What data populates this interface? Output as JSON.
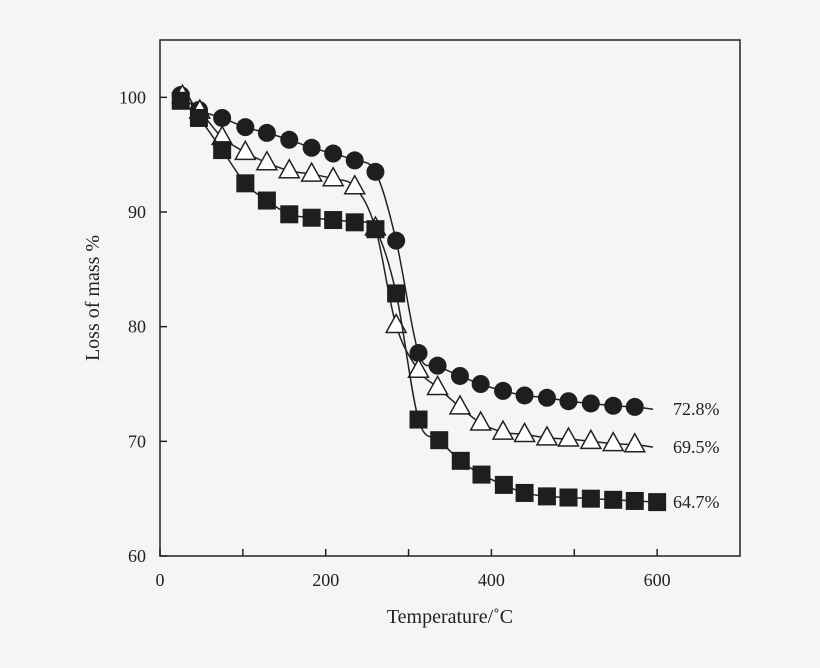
{
  "chart_data": {
    "type": "line",
    "title": "",
    "xlabel": "Temperature/˚C",
    "ylabel": "Loss of mass %",
    "xlim": [
      0,
      700
    ],
    "ylim": [
      60,
      105
    ],
    "xticks": [
      0,
      200,
      400,
      600
    ],
    "yticks": [
      60,
      70,
      80,
      90,
      100
    ],
    "grid": false,
    "series": [
      {
        "marker": "filled-circle",
        "end_label": "72.8%",
        "end_value": 72.8,
        "x": [
          25,
          47,
          75,
          103,
          129,
          156,
          183,
          209,
          235,
          260,
          285,
          312,
          335,
          362,
          387,
          414,
          440,
          467,
          493,
          520,
          547,
          573
        ],
        "y": [
          100.2,
          98.9,
          98.2,
          97.4,
          96.9,
          96.3,
          95.6,
          95.1,
          94.5,
          93.5,
          87.5,
          77.7,
          76.6,
          75.7,
          75.0,
          74.4,
          74.0,
          73.8,
          73.5,
          73.3,
          73.1,
          73.0
        ]
      },
      {
        "marker": "open-triangle",
        "end_label": "69.5%",
        "end_value": 69.5,
        "x": [
          27,
          48,
          75,
          103,
          129,
          156,
          183,
          209,
          235,
          260,
          285,
          312,
          335,
          362,
          387,
          414,
          440,
          467,
          493,
          520,
          547,
          573
        ],
        "y": [
          100.1,
          98.8,
          96.5,
          95.2,
          94.3,
          93.6,
          93.3,
          92.9,
          92.2,
          88.6,
          80.1,
          76.2,
          74.7,
          73.0,
          71.6,
          70.8,
          70.6,
          70.3,
          70.2,
          70.0,
          69.8,
          69.7
        ]
      },
      {
        "marker": "filled-square",
        "end_label": "64.7%",
        "end_value": 64.7,
        "x": [
          25,
          47,
          75,
          103,
          129,
          156,
          183,
          209,
          235,
          260,
          285,
          312,
          337,
          363,
          388,
          415,
          440,
          467,
          493,
          520,
          547,
          573,
          600
        ],
        "y": [
          99.7,
          98.2,
          95.4,
          92.5,
          91.0,
          89.8,
          89.5,
          89.3,
          89.1,
          88.5,
          82.9,
          71.9,
          70.1,
          68.3,
          67.1,
          66.2,
          65.5,
          65.2,
          65.1,
          65.0,
          64.9,
          64.8,
          64.7
        ]
      }
    ]
  }
}
